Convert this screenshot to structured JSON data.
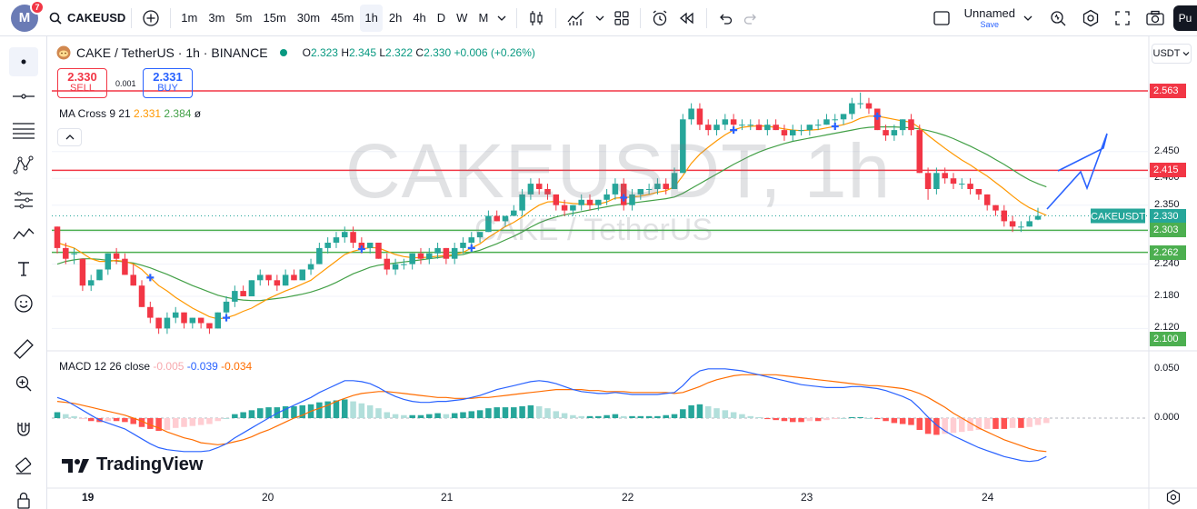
{
  "topbar": {
    "logo_letter": "M",
    "notif_count": "7",
    "symbol": "CAKEUSD",
    "intervals": [
      "1m",
      "3m",
      "5m",
      "15m",
      "30m",
      "45m",
      "1h",
      "2h",
      "4h",
      "D",
      "W",
      "M"
    ],
    "active_interval": "1h",
    "layout_name": "Unnamed",
    "layout_status": "Save",
    "publish": "Pu"
  },
  "legend": {
    "title": "CAKE / TetherUS · 1h · BINANCE",
    "o_label": "O",
    "o": "2.323",
    "h_label": "H",
    "h": "2.345",
    "l_label": "L",
    "l": "2.322",
    "c_label": "C",
    "c": "2.330",
    "change": "+0.006 (+0.26%)"
  },
  "trade": {
    "sell_price": "2.330",
    "sell_label": "SELL",
    "buy_price": "2.331",
    "buy_label": "BUY",
    "spread": "0.001"
  },
  "ma_legend": {
    "name": "MA Cross 9 21",
    "v1": "2.331",
    "v2": "2.384",
    "extra": "ø"
  },
  "macd_legend": {
    "name": "MACD 12 26 close",
    "hist": "-0.005",
    "macd": "-0.039",
    "signal": "-0.034"
  },
  "watermark": {
    "main": "CAKEUSDT, 1h",
    "sub": "CAKE / TetherUS"
  },
  "currency": "USDT",
  "branding": "TradingView",
  "price_axis": {
    "ticks": [
      "2.450",
      "2.400",
      "2.350",
      "2.240",
      "2.180",
      "2.120"
    ],
    "macd_ticks": [
      "0.050",
      "0.000"
    ],
    "labels": [
      {
        "text": "2.563",
        "color": "#f23645"
      },
      {
        "text": "2.415",
        "color": "#f23645"
      },
      {
        "text": "2.330",
        "color": "#26a69a"
      },
      {
        "text": "2.303",
        "color": "#4caf50"
      },
      {
        "text": "2.262",
        "color": "#4caf50"
      },
      {
        "text": "2.100",
        "color": "#4caf50"
      }
    ],
    "symbol_tag": "CAKEUSDT"
  },
  "time_axis": [
    "19",
    "20",
    "21",
    "22",
    "23",
    "24"
  ],
  "horizontal_levels": [
    {
      "price": 2.563,
      "color": "#f23645"
    },
    {
      "price": 2.415,
      "color": "#f23645"
    },
    {
      "price": 2.303,
      "color": "#4caf50"
    },
    {
      "price": 2.262,
      "color": "#4caf50"
    }
  ],
  "colors": {
    "up": "#26a69a",
    "down": "#f23645",
    "ma_fast": "#ff9800",
    "ma_slow": "#43a047",
    "macd": "#2962ff",
    "signal": "#ff6d00"
  },
  "chart_data": {
    "type": "candlestick",
    "title": "CAKE / TetherUS · 1h · BINANCE",
    "price_range": [
      2.08,
      2.58
    ],
    "candles": [
      [
        2.31,
        2.31,
        2.26,
        2.27
      ],
      [
        2.27,
        2.28,
        2.24,
        2.25
      ],
      [
        2.26,
        2.27,
        2.24,
        2.26
      ],
      [
        2.25,
        2.25,
        2.19,
        2.2
      ],
      [
        2.2,
        2.22,
        2.19,
        2.21
      ],
      [
        2.21,
        2.23,
        2.21,
        2.23
      ],
      [
        2.23,
        2.26,
        2.22,
        2.26
      ],
      [
        2.26,
        2.27,
        2.24,
        2.25
      ],
      [
        2.25,
        2.26,
        2.22,
        2.22
      ],
      [
        2.22,
        2.24,
        2.2,
        2.2
      ],
      [
        2.2,
        2.21,
        2.16,
        2.16
      ],
      [
        2.16,
        2.17,
        2.13,
        2.14
      ],
      [
        2.14,
        2.14,
        2.11,
        2.12
      ],
      [
        2.12,
        2.15,
        2.11,
        2.14
      ],
      [
        2.14,
        2.16,
        2.13,
        2.15
      ],
      [
        2.15,
        2.15,
        2.12,
        2.13
      ],
      [
        2.13,
        2.14,
        2.12,
        2.14
      ],
      [
        2.14,
        2.14,
        2.12,
        2.13
      ],
      [
        2.13,
        2.13,
        2.11,
        2.12
      ],
      [
        2.12,
        2.15,
        2.12,
        2.15
      ],
      [
        2.15,
        2.18,
        2.14,
        2.17
      ],
      [
        2.17,
        2.2,
        2.16,
        2.19
      ],
      [
        2.19,
        2.2,
        2.18,
        2.18
      ],
      [
        2.18,
        2.21,
        2.18,
        2.21
      ],
      [
        2.21,
        2.23,
        2.2,
        2.22
      ],
      [
        2.22,
        2.22,
        2.2,
        2.21
      ],
      [
        2.21,
        2.22,
        2.19,
        2.2
      ],
      [
        2.2,
        2.23,
        2.2,
        2.22
      ],
      [
        2.22,
        2.23,
        2.21,
        2.21
      ],
      [
        2.21,
        2.23,
        2.21,
        2.23
      ],
      [
        2.23,
        2.25,
        2.22,
        2.24
      ],
      [
        2.24,
        2.28,
        2.24,
        2.27
      ],
      [
        2.27,
        2.29,
        2.26,
        2.28
      ],
      [
        2.28,
        2.3,
        2.27,
        2.29
      ],
      [
        2.29,
        2.31,
        2.28,
        2.3
      ],
      [
        2.3,
        2.31,
        2.27,
        2.28
      ],
      [
        2.28,
        2.29,
        2.26,
        2.27
      ],
      [
        2.27,
        2.28,
        2.26,
        2.28
      ],
      [
        2.28,
        2.28,
        2.25,
        2.25
      ],
      [
        2.25,
        2.26,
        2.22,
        2.23
      ],
      [
        2.23,
        2.25,
        2.22,
        2.24
      ],
      [
        2.24,
        2.25,
        2.23,
        2.24
      ],
      [
        2.24,
        2.26,
        2.23,
        2.26
      ],
      [
        2.26,
        2.27,
        2.24,
        2.25
      ],
      [
        2.25,
        2.27,
        2.24,
        2.26
      ],
      [
        2.26,
        2.28,
        2.25,
        2.27
      ],
      [
        2.27,
        2.27,
        2.24,
        2.25
      ],
      [
        2.25,
        2.28,
        2.24,
        2.27
      ],
      [
        2.27,
        2.29,
        2.26,
        2.28
      ],
      [
        2.28,
        2.3,
        2.27,
        2.29
      ],
      [
        2.29,
        2.3,
        2.28,
        2.3
      ],
      [
        2.3,
        2.34,
        2.3,
        2.33
      ],
      [
        2.33,
        2.34,
        2.32,
        2.32
      ],
      [
        2.32,
        2.33,
        2.31,
        2.33
      ],
      [
        2.33,
        2.35,
        2.33,
        2.34
      ],
      [
        2.34,
        2.38,
        2.33,
        2.37
      ],
      [
        2.37,
        2.4,
        2.36,
        2.39
      ],
      [
        2.39,
        2.4,
        2.37,
        2.38
      ],
      [
        2.38,
        2.39,
        2.36,
        2.37
      ],
      [
        2.37,
        2.37,
        2.34,
        2.35
      ],
      [
        2.35,
        2.36,
        2.33,
        2.34
      ],
      [
        2.34,
        2.35,
        2.33,
        2.35
      ],
      [
        2.35,
        2.37,
        2.34,
        2.36
      ],
      [
        2.36,
        2.37,
        2.34,
        2.35
      ],
      [
        2.35,
        2.36,
        2.34,
        2.36
      ],
      [
        2.36,
        2.38,
        2.35,
        2.37
      ],
      [
        2.37,
        2.4,
        2.36,
        2.39
      ],
      [
        2.39,
        2.4,
        2.34,
        2.35
      ],
      [
        2.35,
        2.38,
        2.34,
        2.37
      ],
      [
        2.37,
        2.38,
        2.36,
        2.38
      ],
      [
        2.38,
        2.39,
        2.37,
        2.38
      ],
      [
        2.38,
        2.4,
        2.37,
        2.39
      ],
      [
        2.39,
        2.4,
        2.37,
        2.38
      ],
      [
        2.38,
        2.42,
        2.38,
        2.41
      ],
      [
        2.41,
        2.52,
        2.41,
        2.51
      ],
      [
        2.51,
        2.54,
        2.5,
        2.53
      ],
      [
        2.53,
        2.54,
        2.49,
        2.5
      ],
      [
        2.5,
        2.51,
        2.48,
        2.49
      ],
      [
        2.49,
        2.51,
        2.48,
        2.5
      ],
      [
        2.5,
        2.52,
        2.49,
        2.51
      ],
      [
        2.51,
        2.52,
        2.49,
        2.5
      ],
      [
        2.5,
        2.51,
        2.49,
        2.5
      ],
      [
        2.5,
        2.51,
        2.49,
        2.5
      ],
      [
        2.5,
        2.51,
        2.49,
        2.49
      ],
      [
        2.49,
        2.51,
        2.48,
        2.5
      ],
      [
        2.5,
        2.51,
        2.49,
        2.49
      ],
      [
        2.49,
        2.5,
        2.47,
        2.48
      ],
      [
        2.48,
        2.5,
        2.47,
        2.49
      ],
      [
        2.49,
        2.5,
        2.48,
        2.49
      ],
      [
        2.49,
        2.5,
        2.48,
        2.5
      ],
      [
        2.5,
        2.51,
        2.49,
        2.5
      ],
      [
        2.5,
        2.52,
        2.5,
        2.51
      ],
      [
        2.51,
        2.52,
        2.5,
        2.51
      ],
      [
        2.51,
        2.52,
        2.5,
        2.52
      ],
      [
        2.52,
        2.55,
        2.51,
        2.54
      ],
      [
        2.54,
        2.56,
        2.53,
        2.54
      ],
      [
        2.54,
        2.55,
        2.52,
        2.53
      ],
      [
        2.53,
        2.53,
        2.49,
        2.49
      ],
      [
        2.49,
        2.5,
        2.47,
        2.48
      ],
      [
        2.48,
        2.5,
        2.47,
        2.49
      ],
      [
        2.49,
        2.51,
        2.48,
        2.51
      ],
      [
        2.51,
        2.52,
        2.48,
        2.49
      ],
      [
        2.49,
        2.5,
        2.41,
        2.41
      ],
      [
        2.41,
        2.42,
        2.36,
        2.38
      ],
      [
        2.38,
        2.42,
        2.37,
        2.41
      ],
      [
        2.41,
        2.42,
        2.39,
        2.4
      ],
      [
        2.4,
        2.41,
        2.38,
        2.39
      ],
      [
        2.39,
        2.4,
        2.38,
        2.39
      ],
      [
        2.39,
        2.4,
        2.37,
        2.38
      ],
      [
        2.38,
        2.38,
        2.36,
        2.37
      ],
      [
        2.37,
        2.37,
        2.34,
        2.35
      ],
      [
        2.35,
        2.35,
        2.33,
        2.34
      ],
      [
        2.34,
        2.35,
        2.31,
        2.32
      ],
      [
        2.32,
        2.33,
        2.3,
        2.31
      ],
      [
        2.31,
        2.32,
        2.3,
        2.31
      ],
      [
        2.31,
        2.33,
        2.31,
        2.32
      ],
      [
        2.323,
        2.345,
        2.322,
        2.33
      ]
    ],
    "ma_fast": [
      2.28,
      2.275,
      2.27,
      2.26,
      2.25,
      2.245,
      2.245,
      2.247,
      2.245,
      2.24,
      2.23,
      2.215,
      2.2,
      2.19,
      2.178,
      2.168,
      2.158,
      2.15,
      2.142,
      2.138,
      2.14,
      2.145,
      2.152,
      2.158,
      2.167,
      2.176,
      2.183,
      2.19,
      2.196,
      2.203,
      2.21,
      2.222,
      2.234,
      2.246,
      2.258,
      2.264,
      2.268,
      2.271,
      2.27,
      2.264,
      2.258,
      2.254,
      2.252,
      2.252,
      2.253,
      2.255,
      2.256,
      2.258,
      2.262,
      2.27,
      2.278,
      2.29,
      2.3,
      2.31,
      2.318,
      2.328,
      2.34,
      2.35,
      2.356,
      2.357,
      2.355,
      2.353,
      2.352,
      2.351,
      2.352,
      2.356,
      2.363,
      2.364,
      2.365,
      2.367,
      2.37,
      2.374,
      2.377,
      2.384,
      2.405,
      2.428,
      2.445,
      2.458,
      2.47,
      2.481,
      2.49,
      2.495,
      2.497,
      2.498,
      2.497,
      2.495,
      2.492,
      2.49,
      2.489,
      2.49,
      2.491,
      2.494,
      2.497,
      2.5,
      2.505,
      2.512,
      2.516,
      2.516,
      2.513,
      2.51,
      2.507,
      2.505,
      2.494,
      2.48,
      2.468,
      2.456,
      2.445,
      2.434,
      2.425,
      2.414,
      2.404,
      2.392,
      2.38,
      2.367,
      2.355,
      2.345,
      2.338,
      2.331
    ],
    "ma_slow": [
      2.24,
      2.245,
      2.248,
      2.25,
      2.25,
      2.249,
      2.247,
      2.246,
      2.244,
      2.242,
      2.238,
      2.233,
      2.227,
      2.221,
      2.214,
      2.207,
      2.2,
      2.194,
      2.188,
      2.182,
      2.178,
      2.175,
      2.173,
      2.172,
      2.172,
      2.174,
      2.176,
      2.178,
      2.181,
      2.184,
      2.188,
      2.193,
      2.199,
      2.206,
      2.214,
      2.222,
      2.228,
      2.234,
      2.238,
      2.24,
      2.242,
      2.244,
      2.246,
      2.248,
      2.25,
      2.252,
      2.254,
      2.256,
      2.258,
      2.262,
      2.266,
      2.272,
      2.278,
      2.285,
      2.292,
      2.3,
      2.309,
      2.317,
      2.323,
      2.328,
      2.332,
      2.335,
      2.338,
      2.341,
      2.344,
      2.347,
      2.35,
      2.352,
      2.354,
      2.356,
      2.358,
      2.36,
      2.362,
      2.365,
      2.372,
      2.381,
      2.39,
      2.399,
      2.408,
      2.417,
      2.426,
      2.434,
      2.442,
      2.449,
      2.455,
      2.46,
      2.465,
      2.469,
      2.472,
      2.475,
      2.478,
      2.481,
      2.484,
      2.487,
      2.49,
      2.493,
      2.495,
      2.496,
      2.496,
      2.496,
      2.495,
      2.494,
      2.492,
      2.489,
      2.485,
      2.48,
      2.474,
      2.467,
      2.46,
      2.452,
      2.444,
      2.435,
      2.426,
      2.416,
      2.406,
      2.397,
      2.39,
      2.384
    ],
    "macd": {
      "range": [
        -0.06,
        0.06
      ],
      "hist": [
        0.006,
        0.004,
        0.002,
        -0.001,
        -0.003,
        -0.004,
        -0.003,
        -0.003,
        -0.004,
        -0.006,
        -0.009,
        -0.011,
        -0.013,
        -0.012,
        -0.01,
        -0.009,
        -0.008,
        -0.007,
        -0.006,
        -0.003,
        0.0,
        0.004,
        0.006,
        0.008,
        0.01,
        0.011,
        0.011,
        0.012,
        0.012,
        0.013,
        0.014,
        0.016,
        0.017,
        0.018,
        0.019,
        0.017,
        0.015,
        0.013,
        0.01,
        0.006,
        0.004,
        0.003,
        0.003,
        0.003,
        0.004,
        0.005,
        0.004,
        0.005,
        0.006,
        0.007,
        0.008,
        0.01,
        0.011,
        0.011,
        0.011,
        0.012,
        0.013,
        0.012,
        0.01,
        0.007,
        0.005,
        0.003,
        0.002,
        0.002,
        0.002,
        0.003,
        0.004,
        0.002,
        0.002,
        0.002,
        0.002,
        0.002,
        0.003,
        0.004,
        0.009,
        0.013,
        0.014,
        0.012,
        0.01,
        0.008,
        0.006,
        0.004,
        0.002,
        0.001,
        -0.001,
        -0.002,
        -0.003,
        -0.004,
        -0.004,
        -0.003,
        -0.003,
        -0.002,
        -0.001,
        0.0,
        0.001,
        0.001,
        0.0,
        -0.001,
        -0.003,
        -0.005,
        -0.006,
        -0.007,
        -0.012,
        -0.016,
        -0.017,
        -0.016,
        -0.015,
        -0.014,
        -0.013,
        -0.012,
        -0.011,
        -0.011,
        -0.011,
        -0.01,
        -0.01,
        -0.009,
        -0.007,
        -0.005
      ],
      "line": [
        0.021,
        0.018,
        0.013,
        0.008,
        0.003,
        -0.002,
        -0.005,
        -0.008,
        -0.011,
        -0.016,
        -0.021,
        -0.026,
        -0.03,
        -0.032,
        -0.033,
        -0.034,
        -0.034,
        -0.034,
        -0.033,
        -0.03,
        -0.026,
        -0.02,
        -0.015,
        -0.01,
        -0.005,
        0.0,
        0.005,
        0.009,
        0.013,
        0.017,
        0.021,
        0.026,
        0.03,
        0.034,
        0.038,
        0.038,
        0.037,
        0.035,
        0.031,
        0.026,
        0.022,
        0.019,
        0.017,
        0.016,
        0.016,
        0.017,
        0.017,
        0.018,
        0.019,
        0.021,
        0.023,
        0.026,
        0.029,
        0.031,
        0.033,
        0.035,
        0.037,
        0.038,
        0.037,
        0.035,
        0.032,
        0.029,
        0.027,
        0.026,
        0.025,
        0.025,
        0.026,
        0.025,
        0.024,
        0.024,
        0.024,
        0.024,
        0.025,
        0.026,
        0.033,
        0.042,
        0.048,
        0.05,
        0.05,
        0.05,
        0.049,
        0.048,
        0.046,
        0.044,
        0.042,
        0.04,
        0.038,
        0.036,
        0.034,
        0.033,
        0.032,
        0.031,
        0.031,
        0.031,
        0.032,
        0.032,
        0.031,
        0.03,
        0.028,
        0.025,
        0.022,
        0.018,
        0.01,
        0.001,
        -0.007,
        -0.013,
        -0.018,
        -0.022,
        -0.026,
        -0.03,
        -0.033,
        -0.036,
        -0.039,
        -0.041,
        -0.043,
        -0.044,
        -0.043,
        -0.039
      ],
      "signal": [
        0.017,
        0.016,
        0.015,
        0.013,
        0.011,
        0.009,
        0.007,
        0.005,
        0.003,
        0.0,
        -0.003,
        -0.007,
        -0.01,
        -0.014,
        -0.017,
        -0.02,
        -0.022,
        -0.025,
        -0.026,
        -0.027,
        -0.026,
        -0.024,
        -0.022,
        -0.019,
        -0.015,
        -0.012,
        -0.008,
        -0.004,
        0.0,
        0.003,
        0.007,
        0.01,
        0.013,
        0.017,
        0.02,
        0.023,
        0.025,
        0.026,
        0.027,
        0.027,
        0.026,
        0.025,
        0.024,
        0.023,
        0.022,
        0.021,
        0.021,
        0.02,
        0.02,
        0.02,
        0.021,
        0.021,
        0.022,
        0.023,
        0.024,
        0.025,
        0.026,
        0.027,
        0.028,
        0.029,
        0.029,
        0.029,
        0.029,
        0.028,
        0.028,
        0.027,
        0.027,
        0.027,
        0.026,
        0.026,
        0.026,
        0.026,
        0.026,
        0.025,
        0.026,
        0.029,
        0.032,
        0.036,
        0.039,
        0.041,
        0.043,
        0.044,
        0.044,
        0.044,
        0.044,
        0.044,
        0.043,
        0.042,
        0.041,
        0.04,
        0.039,
        0.038,
        0.037,
        0.036,
        0.035,
        0.034,
        0.033,
        0.033,
        0.032,
        0.031,
        0.03,
        0.028,
        0.025,
        0.021,
        0.016,
        0.011,
        0.005,
        0.0,
        -0.005,
        -0.01,
        -0.014,
        -0.018,
        -0.022,
        -0.025,
        -0.028,
        -0.031,
        -0.033,
        -0.034
      ]
    }
  }
}
